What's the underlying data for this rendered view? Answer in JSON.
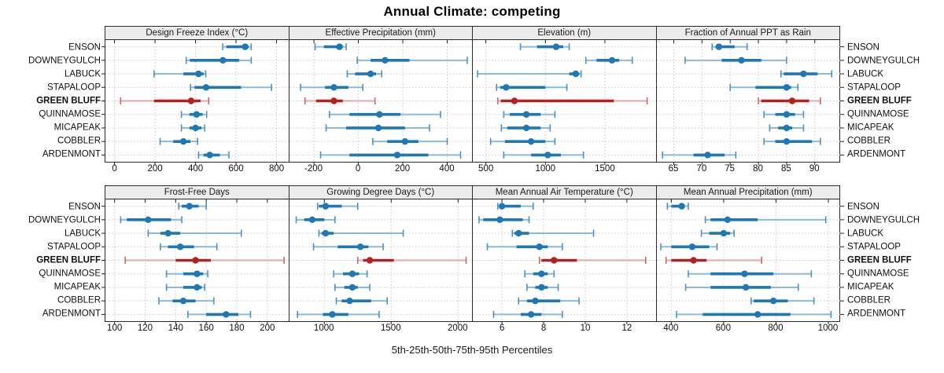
{
  "title": "Annual Climate: competing",
  "footer": "5th-25th-50th-75th-95th Percentiles",
  "sites": [
    "ENSON",
    "DOWNEYGULCH",
    "LABUCK",
    "STAPALOOP",
    "GREEN BLUFF",
    "QUINNAMOSE",
    "MICAPEAK",
    "COBBLER",
    "ARDENMONT"
  ],
  "highlight_site": "GREEN BLUFF",
  "colors": {
    "blue_dark": "#1f77b4",
    "blue_mid": "#4a92c6",
    "blue_light": "#8cbadd",
    "red_dark": "#b22222",
    "red_mid": "#cc6a68",
    "red_light": "#e2a9a7",
    "grid": "#c9c9c9",
    "panel_border": "#2a2a2a",
    "header_bg": "#ececec"
  },
  "chart_data": [
    {
      "type": "dotplot-interval",
      "title": "Design Freeze Index (°C)",
      "xlim": [
        -45,
        860
      ],
      "xticks": [
        0,
        200,
        400,
        600,
        800
      ],
      "series": [
        {
          "name": "ENSON",
          "p": [
            534,
            552,
            645,
            662,
            675
          ]
        },
        {
          "name": "DOWNEYGULCH",
          "p": [
            354,
            372,
            535,
            615,
            675
          ]
        },
        {
          "name": "LABUCK",
          "p": [
            195,
            340,
            415,
            440,
            450
          ]
        },
        {
          "name": "STAPALOOP",
          "p": [
            375,
            395,
            452,
            625,
            775
          ]
        },
        {
          "name": "GREEN BLUFF",
          "p": [
            30,
            195,
            378,
            425,
            465
          ]
        },
        {
          "name": "QUINNAMOSE",
          "p": [
            330,
            370,
            405,
            435,
            455
          ]
        },
        {
          "name": "MICAPEAK",
          "p": [
            330,
            370,
            400,
            430,
            445
          ]
        },
        {
          "name": "COBBLER",
          "p": [
            225,
            290,
            340,
            375,
            410
          ]
        },
        {
          "name": "ARDENMONT",
          "p": [
            415,
            440,
            470,
            520,
            565
          ]
        }
      ]
    },
    {
      "type": "dotplot-interval",
      "title": "Effective Precipitation (mm)",
      "xlim": [
        -310,
        515
      ],
      "xticks": [
        -200,
        0,
        200,
        400
      ],
      "series": [
        {
          "name": "ENSON",
          "p": [
            -195,
            -155,
            -85,
            -70,
            -55
          ]
        },
        {
          "name": "DOWNEYGULCH",
          "p": [
            -5,
            55,
            120,
            230,
            490
          ]
        },
        {
          "name": "LABUCK",
          "p": [
            -50,
            -15,
            55,
            80,
            105
          ]
        },
        {
          "name": "STAPALOOP",
          "p": [
            -260,
            -150,
            -110,
            -45,
            20
          ]
        },
        {
          "name": "GREEN BLUFF",
          "p": [
            -240,
            -190,
            -110,
            -70,
            75
          ]
        },
        {
          "name": "QUINNAMOSE",
          "p": [
            -130,
            -40,
            95,
            190,
            370
          ]
        },
        {
          "name": "MICAPEAK",
          "p": [
            -145,
            -55,
            90,
            210,
            320
          ]
        },
        {
          "name": "COBBLER",
          "p": [
            65,
            130,
            210,
            270,
            400
          ]
        },
        {
          "name": "ARDENMONT",
          "p": [
            -170,
            -40,
            175,
            315,
            460
          ]
        }
      ]
    },
    {
      "type": "dotplot-interval",
      "title": "Elevation (m)",
      "xlim": [
        390,
        1930
      ],
      "xticks": [
        500,
        1000,
        1500
      ],
      "series": [
        {
          "name": "ENSON",
          "p": [
            790,
            930,
            1090,
            1150,
            1200
          ]
        },
        {
          "name": "DOWNEYGULCH",
          "p": [
            1340,
            1430,
            1560,
            1620,
            1730
          ]
        },
        {
          "name": "LABUCK",
          "p": [
            430,
            1200,
            1255,
            1285,
            1300
          ]
        },
        {
          "name": "STAPALOOP",
          "p": [
            590,
            620,
            670,
            1000,
            1180
          ]
        },
        {
          "name": "GREEN BLUFF",
          "p": [
            600,
            625,
            740,
            1575,
            1855
          ]
        },
        {
          "name": "QUINNAMOSE",
          "p": [
            650,
            700,
            840,
            960,
            1080
          ]
        },
        {
          "name": "MICAPEAK",
          "p": [
            630,
            680,
            840,
            960,
            1040
          ]
        },
        {
          "name": "COBBLER",
          "p": [
            540,
            660,
            880,
            1000,
            1080
          ]
        },
        {
          "name": "ARDENMONT",
          "p": [
            650,
            880,
            1020,
            1130,
            1320
          ]
        }
      ]
    },
    {
      "type": "dotplot-interval",
      "title": "Fraction of Annual PPT as Rain",
      "xlim": [
        62,
        94.5
      ],
      "xticks": [
        65,
        70,
        75,
        80,
        85,
        90
      ],
      "series": [
        {
          "name": "ENSON",
          "p": [
            71.8,
            72.4,
            73,
            75.8,
            78
          ]
        },
        {
          "name": "DOWNEYGULCH",
          "p": [
            67,
            73.5,
            77,
            80.5,
            85
          ]
        },
        {
          "name": "LABUCK",
          "p": [
            84,
            84.5,
            88,
            90.5,
            93
          ]
        },
        {
          "name": "STAPALOOP",
          "p": [
            75,
            79.5,
            85,
            85.8,
            87
          ]
        },
        {
          "name": "GREEN BLUFF",
          "p": [
            80,
            80.5,
            86,
            89,
            91
          ]
        },
        {
          "name": "QUINNAMOSE",
          "p": [
            81,
            83,
            85,
            86.5,
            88
          ]
        },
        {
          "name": "MICAPEAK",
          "p": [
            82,
            83.5,
            85,
            86,
            88
          ]
        },
        {
          "name": "COBBLER",
          "p": [
            81,
            83,
            85,
            89.5,
            91
          ]
        },
        {
          "name": "ARDENMONT",
          "p": [
            63,
            68.5,
            71,
            74,
            76
          ]
        }
      ]
    },
    {
      "type": "dotplot-interval",
      "title": "Frost-Free Days",
      "xlim": [
        94,
        214
      ],
      "xticks": [
        100,
        120,
        140,
        160,
        180,
        200
      ],
      "series": [
        {
          "name": "ENSON",
          "p": [
            142,
            144,
            149,
            155,
            160
          ]
        },
        {
          "name": "DOWNEYGULCH",
          "p": [
            104,
            108,
            122,
            137,
            144
          ]
        },
        {
          "name": "LABUCK",
          "p": [
            122,
            130,
            135,
            143,
            183
          ]
        },
        {
          "name": "STAPALOOP",
          "p": [
            130,
            135,
            143,
            152,
            167
          ]
        },
        {
          "name": "GREEN BLUFF",
          "p": [
            107,
            140,
            153,
            163,
            211
          ]
        },
        {
          "name": "QUINNAMOSE",
          "p": [
            134,
            145,
            154,
            158,
            161
          ]
        },
        {
          "name": "MICAPEAK",
          "p": [
            134,
            145,
            154,
            157,
            159
          ]
        },
        {
          "name": "COBBLER",
          "p": [
            129,
            138,
            145,
            153,
            165
          ]
        },
        {
          "name": "ARDENMONT",
          "p": [
            148,
            160,
            173,
            181,
            189
          ]
        }
      ]
    },
    {
      "type": "dotplot-interval",
      "title": "Growing Degree Days (°C)",
      "xlim": [
        740,
        2110
      ],
      "xticks": [
        1000,
        1500,
        2000
      ],
      "series": [
        {
          "name": "ENSON",
          "p": [
            950,
            960,
            1010,
            1130,
            1250
          ]
        },
        {
          "name": "DOWNEYGULCH",
          "p": [
            790,
            850,
            910,
            1000,
            1080
          ]
        },
        {
          "name": "LABUCK",
          "p": [
            960,
            980,
            1010,
            1070,
            1590
          ]
        },
        {
          "name": "STAPALOOP",
          "p": [
            920,
            1100,
            1270,
            1330,
            1440
          ]
        },
        {
          "name": "GREEN BLUFF",
          "p": [
            1250,
            1290,
            1340,
            1520,
            2060
          ]
        },
        {
          "name": "QUINNAMOSE",
          "p": [
            1070,
            1140,
            1210,
            1260,
            1320
          ]
        },
        {
          "name": "MICAPEAK",
          "p": [
            1080,
            1150,
            1210,
            1250,
            1340
          ]
        },
        {
          "name": "COBBLER",
          "p": [
            1090,
            1130,
            1190,
            1350,
            1470
          ]
        },
        {
          "name": "ARDENMONT",
          "p": [
            800,
            990,
            1060,
            1180,
            1410
          ]
        }
      ]
    },
    {
      "type": "dotplot-interval",
      "title": "Mean Annual Air Temperature (°C)",
      "xlim": [
        4.6,
        13.4
      ],
      "xticks": [
        6,
        8,
        10,
        12
      ],
      "series": [
        {
          "name": "ENSON",
          "p": [
            5.8,
            5.9,
            6.0,
            6.9,
            7.5
          ]
        },
        {
          "name": "DOWNEYGULCH",
          "p": [
            4.9,
            5.1,
            5.9,
            7.0,
            7.3
          ]
        },
        {
          "name": "LABUCK",
          "p": [
            6.5,
            6.6,
            6.8,
            7.3,
            10.4
          ]
        },
        {
          "name": "STAPALOOP",
          "p": [
            5.3,
            6.7,
            7.8,
            8.2,
            8.9
          ]
        },
        {
          "name": "GREEN BLUFF",
          "p": [
            7.8,
            7.9,
            8.5,
            9.6,
            12.9
          ]
        },
        {
          "name": "QUINNAMOSE",
          "p": [
            7.1,
            7.5,
            7.9,
            8.2,
            8.5
          ]
        },
        {
          "name": "MICAPEAK",
          "p": [
            7.2,
            7.6,
            7.9,
            8.2,
            8.7
          ]
        },
        {
          "name": "COBBLER",
          "p": [
            6.8,
            7.2,
            7.6,
            8.8,
            9.7
          ]
        },
        {
          "name": "ARDENMONT",
          "p": [
            5.6,
            6.9,
            7.4,
            7.9,
            8.9
          ]
        }
      ]
    },
    {
      "type": "dotplot-interval",
      "title": "Mean Annual Precipitation (mm)",
      "xlim": [
        345,
        1045
      ],
      "xticks": [
        400,
        600,
        800,
        1000
      ],
      "series": [
        {
          "name": "ENSON",
          "p": [
            385,
            400,
            440,
            450,
            465
          ]
        },
        {
          "name": "DOWNEYGULCH",
          "p": [
            530,
            550,
            615,
            730,
            990
          ]
        },
        {
          "name": "LABUCK",
          "p": [
            515,
            545,
            600,
            625,
            640
          ]
        },
        {
          "name": "STAPALOOP",
          "p": [
            360,
            400,
            480,
            545,
            575
          ]
        },
        {
          "name": "GREEN BLUFF",
          "p": [
            380,
            400,
            485,
            535,
            745
          ]
        },
        {
          "name": "QUINNAMOSE",
          "p": [
            465,
            550,
            680,
            790,
            935
          ]
        },
        {
          "name": "MICAPEAK",
          "p": [
            455,
            550,
            685,
            780,
            885
          ]
        },
        {
          "name": "COBBLER",
          "p": [
            705,
            715,
            790,
            845,
            945
          ]
        },
        {
          "name": "ARDENMONT",
          "p": [
            420,
            520,
            730,
            855,
            1010
          ]
        }
      ]
    }
  ]
}
